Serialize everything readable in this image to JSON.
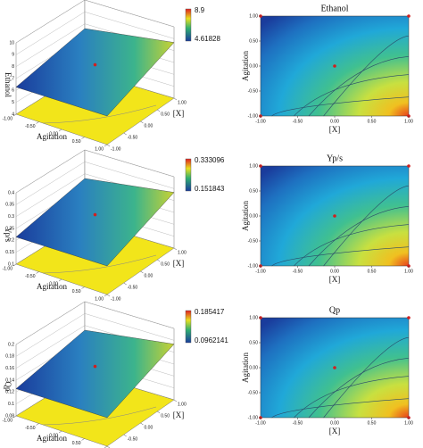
{
  "chart_data": [
    {
      "type": "surface",
      "zlabel": "Ethanol",
      "xlabel": "[X]",
      "ylabel": "Agitation",
      "color_range": [
        4.61828,
        8.9
      ],
      "zlim": [
        4,
        10
      ],
      "zticks": [
        4,
        5,
        6,
        7,
        8,
        9,
        10
      ],
      "xticks": [
        {
          "value": -1,
          "label": "-1.00"
        },
        {
          "value": -0.5,
          "label": "-0.50"
        },
        {
          "value": 0,
          "label": "0.00"
        },
        {
          "value": 0.5,
          "label": "0.50"
        },
        {
          "value": 1,
          "label": "1.00"
        }
      ]
    },
    {
      "type": "contour",
      "title": "Ethanol",
      "xlabel": "[X]",
      "ylabel": "Agitation",
      "xticks": [
        {
          "value": -1,
          "label": "-1.00"
        },
        {
          "value": -0.5,
          "label": "-0.50"
        },
        {
          "value": 0,
          "label": "0.00"
        },
        {
          "value": 0.5,
          "label": "0.50"
        },
        {
          "value": 1,
          "label": "1.00"
        }
      ],
      "yticks": [
        {
          "value": -1,
          "label": "-1.00"
        },
        {
          "value": -0.5,
          "label": "-0.50"
        },
        {
          "value": 0,
          "label": "0.00"
        },
        {
          "value": 0.5,
          "label": "0.50"
        },
        {
          "value": 1,
          "label": "1.00"
        }
      ]
    },
    {
      "type": "surface",
      "zlabel": "Yp/s",
      "xlabel": "[X]",
      "ylabel": "Agitation",
      "color_range": [
        0.151843,
        0.333096
      ],
      "zlim": [
        0.1,
        0.4
      ],
      "zticks": [
        0.1,
        0.15,
        0.2,
        0.25,
        0.3,
        0.35,
        0.4
      ],
      "xticks": [
        {
          "value": -1,
          "label": "-1.00"
        },
        {
          "value": -0.5,
          "label": "-0.50"
        },
        {
          "value": 0,
          "label": "0.00"
        },
        {
          "value": 0.5,
          "label": "0.50"
        },
        {
          "value": 1,
          "label": "1.00"
        }
      ]
    },
    {
      "type": "contour",
      "title": "Yp/s",
      "xlabel": "[X]",
      "ylabel": "Agitation",
      "xticks": [
        {
          "value": -1,
          "label": "-1.00"
        },
        {
          "value": -0.5,
          "label": "-0.50"
        },
        {
          "value": 0,
          "label": "0.00"
        },
        {
          "value": 0.5,
          "label": "0.50"
        },
        {
          "value": 1,
          "label": "1.00"
        }
      ],
      "yticks": [
        {
          "value": -1,
          "label": "-1.00"
        },
        {
          "value": -0.5,
          "label": "-0.50"
        },
        {
          "value": 0,
          "label": "0.00"
        },
        {
          "value": 0.5,
          "label": "0.50"
        },
        {
          "value": 1,
          "label": "1.00"
        }
      ]
    },
    {
      "type": "surface",
      "zlabel": "Qp",
      "xlabel": "[X]",
      "ylabel": "Agitation",
      "color_range": [
        0.0962141,
        0.185417
      ],
      "zlim": [
        0.08,
        0.2
      ],
      "zticks": [
        0.08,
        0.1,
        0.12,
        0.14,
        0.16,
        0.18,
        0.2
      ],
      "xticks": [
        {
          "value": -1,
          "label": "-1.00"
        },
        {
          "value": -0.5,
          "label": "-0.50"
        },
        {
          "value": 0,
          "label": "0.00"
        },
        {
          "value": 0.5,
          "label": "0.50"
        },
        {
          "value": 1,
          "label": "1.00"
        }
      ]
    },
    {
      "type": "contour",
      "title": "Qp",
      "xlabel": "[X]",
      "ylabel": "Agitation",
      "xticks": [
        {
          "value": -1,
          "label": "-1.00"
        },
        {
          "value": -0.5,
          "label": "-0.50"
        },
        {
          "value": 0,
          "label": "0.00"
        },
        {
          "value": 0.5,
          "label": "0.50"
        },
        {
          "value": 1,
          "label": "1.00"
        }
      ],
      "yticks": [
        {
          "value": -1,
          "label": "-1.00"
        },
        {
          "value": -0.5,
          "label": "-0.50"
        },
        {
          "value": 0,
          "label": "0.00"
        },
        {
          "value": 0.5,
          "label": "0.50"
        },
        {
          "value": 1,
          "label": "1.00"
        }
      ]
    }
  ]
}
